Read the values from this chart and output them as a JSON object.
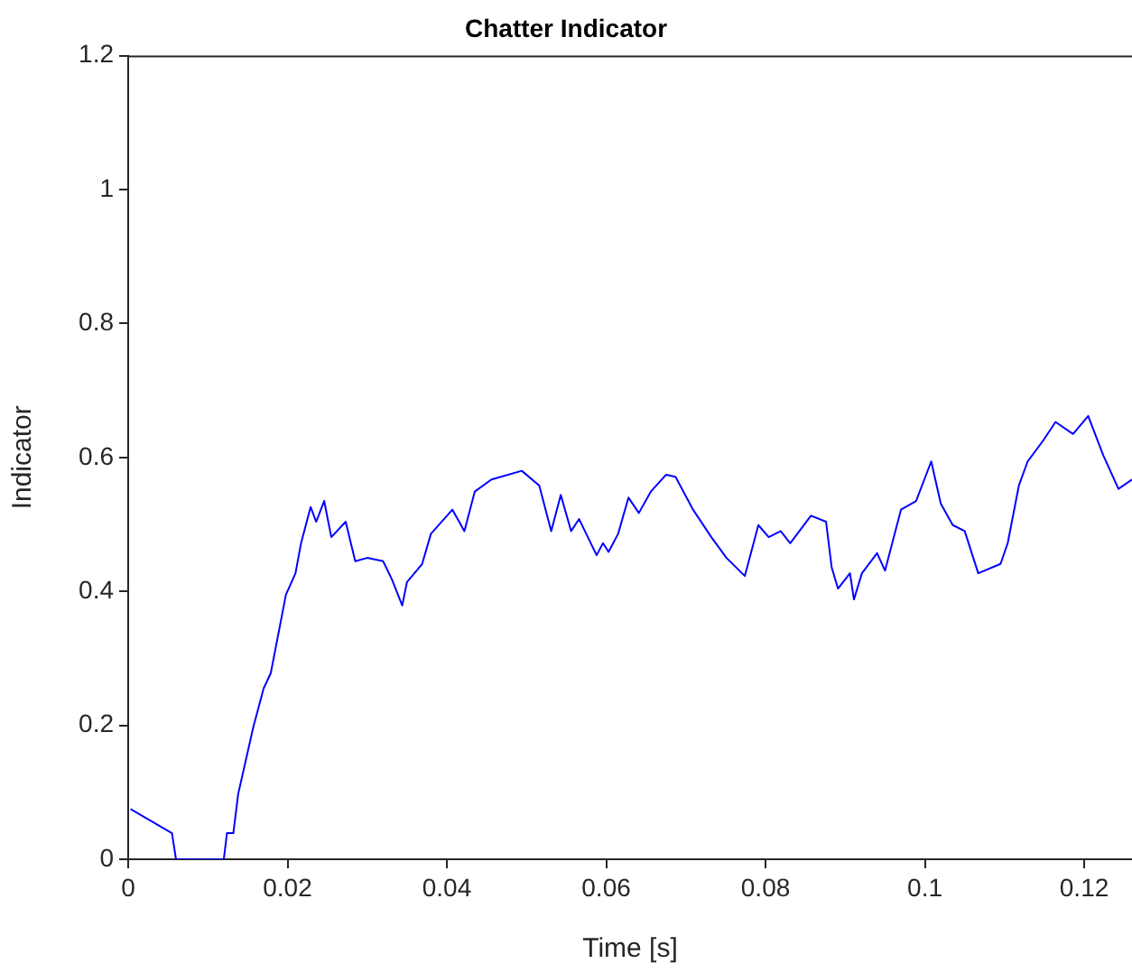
{
  "chart_data": {
    "type": "line",
    "title": "Chatter Indicator",
    "xlabel": "Time [s]",
    "ylabel": "Indicator",
    "xlim": [
      0,
      0.126
    ],
    "ylim": [
      0,
      1.2
    ],
    "xticks": [
      0,
      0.02,
      0.04,
      0.06,
      0.08,
      0.1,
      0.12
    ],
    "yticks": [
      0,
      0.2,
      0.4,
      0.6,
      0.8,
      1,
      1.2
    ],
    "grid": false,
    "legend": false,
    "marker": "none",
    "line_style": "solid",
    "series": [
      {
        "color": "#0000ff",
        "x": [
          0.0003,
          0.0055,
          0.006,
          0.012,
          0.0124,
          0.0132,
          0.0138,
          0.0157,
          0.017,
          0.0179,
          0.0198,
          0.021,
          0.0217,
          0.0229,
          0.0236,
          0.0246,
          0.0255,
          0.0273,
          0.0285,
          0.03,
          0.032,
          0.0331,
          0.0344,
          0.035,
          0.0369,
          0.038,
          0.0407,
          0.0422,
          0.0435,
          0.0456,
          0.0494,
          0.0516,
          0.0531,
          0.0543,
          0.0556,
          0.0566,
          0.0588,
          0.0596,
          0.0603,
          0.0615,
          0.0628,
          0.0641,
          0.0656,
          0.0675,
          0.0687,
          0.0709,
          0.0732,
          0.0751,
          0.0774,
          0.0791,
          0.0804,
          0.0819,
          0.0831,
          0.0857,
          0.0876,
          0.0883,
          0.0891,
          0.0906,
          0.0911,
          0.0921,
          0.094,
          0.095,
          0.097,
          0.0989,
          0.1008,
          0.102,
          0.1035,
          0.105,
          0.1067,
          0.1095,
          0.1104,
          0.1118,
          0.1129,
          0.1149,
          0.1164,
          0.1186,
          0.1205,
          0.1224,
          0.1243,
          0.126
        ],
        "values": [
          0.075,
          0.039,
          0,
          0,
          0.039,
          0.039,
          0.097,
          0.197,
          0.255,
          0.278,
          0.395,
          0.427,
          0.472,
          0.526,
          0.504,
          0.535,
          0.481,
          0.504,
          0.445,
          0.45,
          0.445,
          0.418,
          0.379,
          0.414,
          0.441,
          0.486,
          0.522,
          0.49,
          0.549,
          0.567,
          0.58,
          0.558,
          0.49,
          0.544,
          0.49,
          0.508,
          0.454,
          0.472,
          0.459,
          0.486,
          0.54,
          0.517,
          0.549,
          0.574,
          0.571,
          0.522,
          0.481,
          0.45,
          0.423,
          0.499,
          0.481,
          0.49,
          0.472,
          0.513,
          0.504,
          0.436,
          0.404,
          0.427,
          0.388,
          0.427,
          0.457,
          0.431,
          0.522,
          0.535,
          0.594,
          0.531,
          0.499,
          0.49,
          0.427,
          0.441,
          0.472,
          0.558,
          0.594,
          0.626,
          0.653,
          0.635,
          0.662,
          0.603,
          0.553,
          0.567
        ]
      }
    ]
  }
}
